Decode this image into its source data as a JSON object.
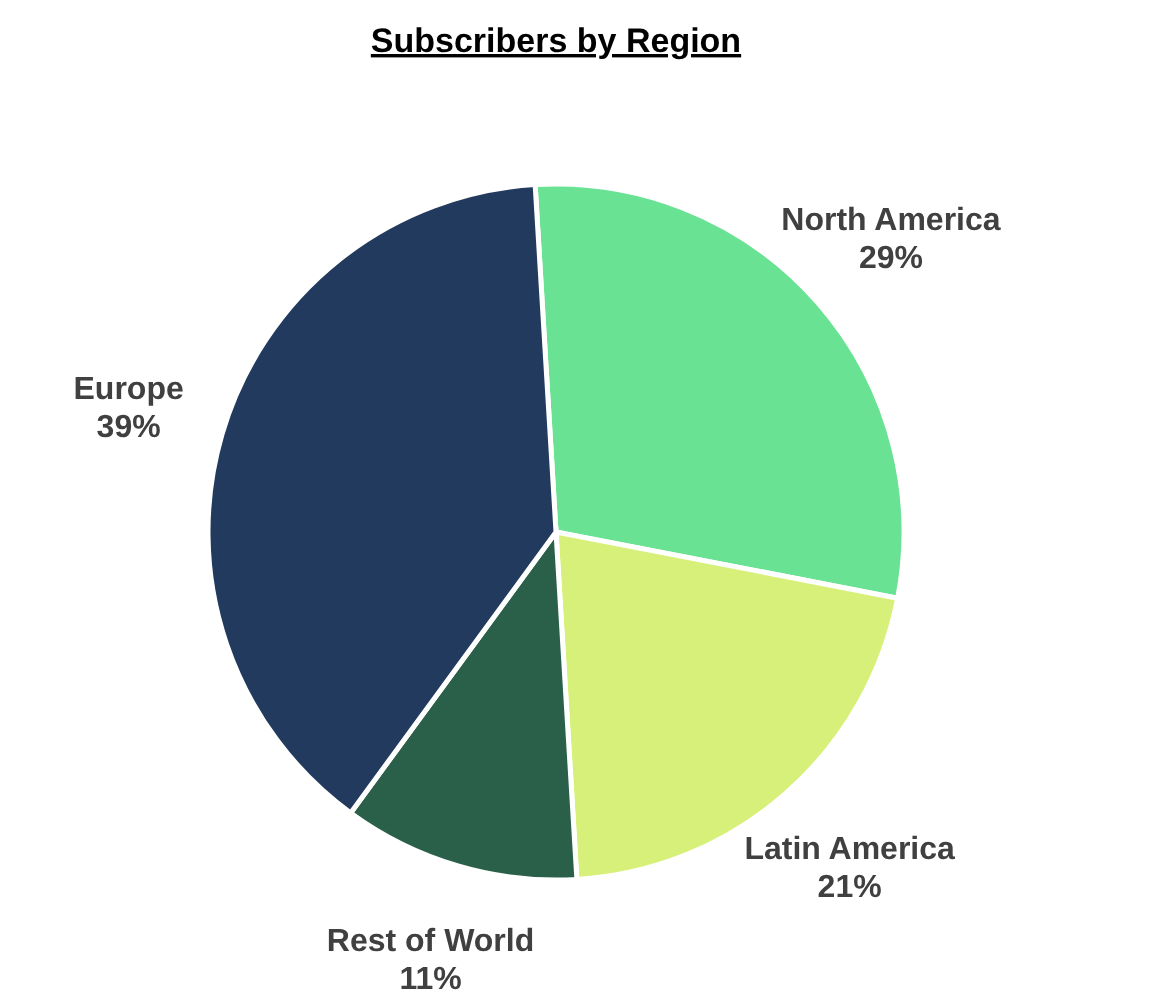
{
  "chart_data": {
    "type": "pie",
    "title": "Subscribers by Region",
    "categories": [
      "North America",
      "Latin America",
      "Rest of World",
      "Europe"
    ],
    "values": [
      29,
      21,
      11,
      39
    ],
    "value_labels": [
      "29%",
      "21%",
      "11%",
      "39%"
    ],
    "colors": [
      "#6ae294",
      "#d7f07a",
      "#2a6049",
      "#213a5e"
    ]
  }
}
